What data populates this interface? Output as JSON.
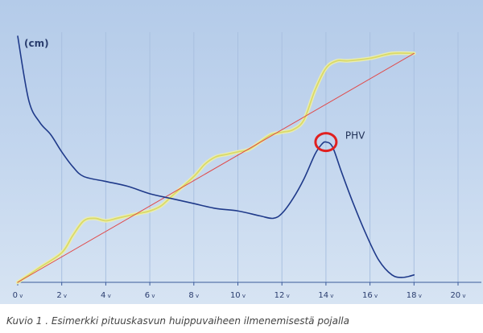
{
  "chart_data": {
    "type": "line",
    "ylabel": "(cm)",
    "xlabel": "",
    "title": "",
    "caption": "Kuvio 1 . Esimerkki pituuskasvun huippuvaiheen ilmenemisestä pojalla",
    "xlim": [
      0,
      20
    ],
    "ylim": [
      0,
      100
    ],
    "x_ticks": [
      {
        "num": "0",
        "unit": "v"
      },
      {
        "num": "2",
        "unit": "v"
      },
      {
        "num": "4",
        "unit": "v"
      },
      {
        "num": "6",
        "unit": "v"
      },
      {
        "num": "8",
        "unit": "v"
      },
      {
        "num": "10",
        "unit": "v"
      },
      {
        "num": "12",
        "unit": "v"
      },
      {
        "num": "14",
        "unit": "v"
      },
      {
        "num": "16",
        "unit": "v"
      },
      {
        "num": "18",
        "unit": "v"
      },
      {
        "num": "20",
        "unit": "v"
      }
    ],
    "grid": true,
    "series": [
      {
        "color": "#1f3a8a",
        "x": [
          0,
          0.5,
          1,
          1.5,
          2,
          2.5,
          3,
          4,
          5,
          6,
          7,
          8,
          9,
          10,
          11,
          11.6,
          12,
          12.5,
          13,
          13.5,
          13.8,
          14,
          14.3,
          14.7,
          15.2,
          15.8,
          16.4,
          17,
          17.5,
          18
        ],
        "y": [
          100,
          74,
          65,
          60,
          53,
          47,
          43,
          41,
          39,
          36,
          34,
          32,
          30,
          29,
          27,
          26,
          28,
          34,
          42,
          52,
          56,
          57,
          55,
          45,
          33,
          20,
          9,
          3,
          2,
          3
        ]
      },
      {
        "color": "#d9d96a",
        "x": [
          0,
          1,
          2,
          2.5,
          3,
          3.5,
          4,
          4.5,
          5,
          5.5,
          6,
          6.5,
          7,
          8,
          8.5,
          9,
          9.5,
          10,
          10.5,
          11,
          11.5,
          12,
          12.5,
          13,
          13.5,
          14,
          14.5,
          15,
          16,
          17,
          18
        ],
        "y": [
          0,
          6,
          12,
          19,
          25,
          26,
          25,
          26,
          27,
          28,
          29,
          31,
          35,
          43,
          48,
          51,
          52,
          53,
          54,
          57,
          60,
          61,
          62,
          66,
          78,
          87,
          90,
          90,
          91,
          93,
          93
        ]
      },
      {
        "color": "#e04a4a",
        "x": [
          0,
          18
        ],
        "y": [
          0,
          93
        ]
      }
    ],
    "annotations": [
      {
        "text": "PHV",
        "x": 14,
        "y": 57,
        "marker": "circle",
        "marker_color": "#e02020"
      }
    ]
  }
}
